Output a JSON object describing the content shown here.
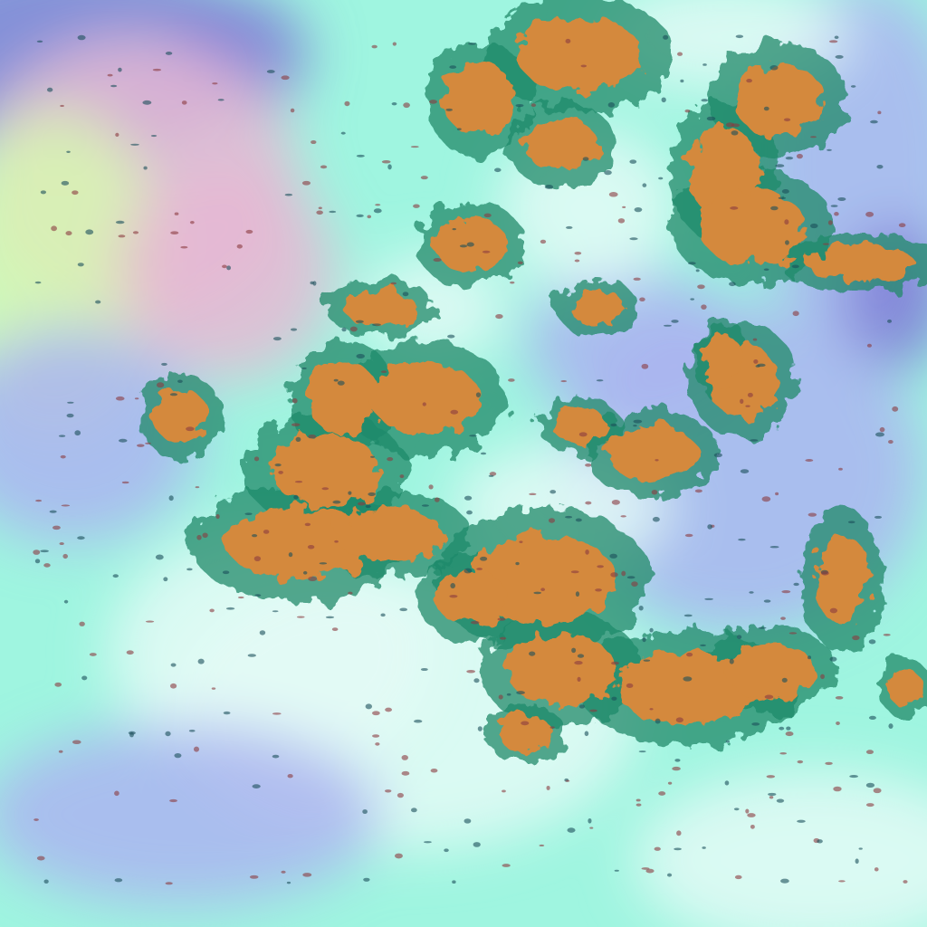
{
  "image": {
    "kind": "false-color satellite cloud imagery",
    "colors": {
      "low_cloud_cyan": "#8ff5dc",
      "haze_white": "#e4faf6",
      "high_cloud_lavender": "#aab4f0",
      "deep_violet": "#7f7fd6",
      "land_pink": "#e6b8d4",
      "land_yellow_green": "#d8f8b0",
      "convective_orange": "#d4893c",
      "cloud_edge_green": "#1f8a6a",
      "shadow_dark": "#1a4f5a"
    }
  }
}
